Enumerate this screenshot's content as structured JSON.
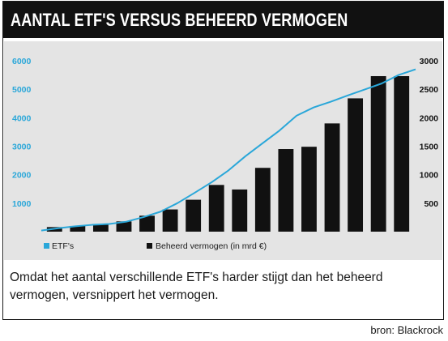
{
  "header": {
    "title": "AANTAL ETF'S VERSUS BEHEERD VERMOGEN"
  },
  "caption": "Omdat het aantal verschillende ETF's harder stijgt dan het beheerd vermogen, versnippert het vermogen.",
  "source": "bron: Blackrock",
  "colors": {
    "line": "#2aa7d9",
    "bars": "#111111",
    "panel": "#e4e4e4",
    "header": "#111111"
  },
  "chart_data": {
    "type": "bar+line",
    "title": "AANTAL ETF'S VERSUS BEHEERD VERMOGEN",
    "legend_position": "bottom-left",
    "grid": false,
    "left_axis": {
      "ylim": [
        0,
        6000
      ],
      "ticks": [
        "1000",
        "2000",
        "3000",
        "4000",
        "5000",
        "6000"
      ]
    },
    "right_axis": {
      "ylim": [
        0,
        3000
      ],
      "ticks": [
        "500",
        "1000",
        "1500",
        "2000",
        "2500",
        "3000"
      ]
    },
    "series": [
      {
        "name": "ETF's",
        "type": "line",
        "axis": "left",
        "values": [
          40,
          120,
          190,
          240,
          270,
          350,
          510,
          700,
          1000,
          1360,
          1730,
          2150,
          2650,
          3100,
          3550,
          4070,
          4360,
          4560,
          4780,
          4990,
          5200,
          5500,
          5700
        ]
      },
      {
        "name": "Beheerd vermogen (in mrd €)",
        "type": "bar",
        "axis": "right",
        "values": [
          80,
          100,
          130,
          180,
          280,
          390,
          560,
          820,
          740,
          1120,
          1450,
          1490,
          1900,
          2340,
          2730,
          2730
        ]
      }
    ]
  }
}
